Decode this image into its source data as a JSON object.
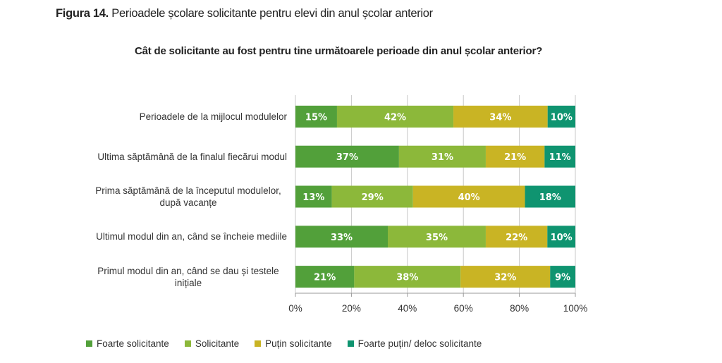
{
  "figure": {
    "number_label": "Figura 14.",
    "caption": "Perioadele școlare solicitante pentru elevi din anul școlar anterior"
  },
  "chart_data": {
    "type": "bar",
    "orientation": "horizontal",
    "stacked": "percent",
    "title": "Cât de solicitante au fost pentru tine următoarele perioade din anul școlar anterior?",
    "categories": [
      "Perioadele de la mijlocul modulelor",
      "Ultima săptămână de la finalul fiecărui modul",
      "Prima săptămână de la începutul modulelor, după vacanțe",
      "Ultimul modul din an, când se încheie mediile",
      "Primul modul din an, când se dau și testele inițiale"
    ],
    "series": [
      {
        "name": "Foarte solicitante",
        "color": "#52a03a",
        "values": [
          15,
          37,
          13,
          33,
          21
        ]
      },
      {
        "name": "Solicitante",
        "color": "#8cb83a",
        "values": [
          42,
          31,
          29,
          35,
          38
        ]
      },
      {
        "name": "Puțin solicitante",
        "color": "#c9b424",
        "values": [
          34,
          21,
          40,
          22,
          32
        ]
      },
      {
        "name": "Foarte puțin/ deloc solicitante",
        "color": "#0f9470",
        "values": [
          10,
          11,
          18,
          10,
          9
        ]
      }
    ],
    "xticks": [
      "0%",
      "20%",
      "40%",
      "60%",
      "80%",
      "100%"
    ],
    "xlim": [
      0,
      100
    ],
    "grid": true,
    "legend_position": "bottom"
  }
}
